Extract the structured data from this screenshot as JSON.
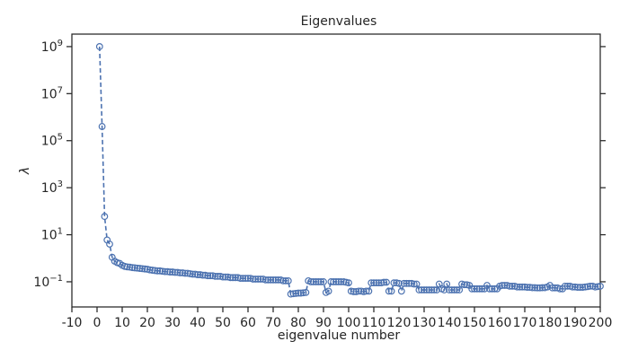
{
  "chart_data": {
    "type": "line",
    "title": "Eigenvalues",
    "x_label": "eigenvalue number",
    "y_label": "λ",
    "log_y": true,
    "x": [
      1,
      2,
      3,
      4,
      5,
      6,
      7,
      8,
      9,
      10,
      11,
      12,
      13,
      14,
      15,
      16,
      17,
      18,
      19,
      20,
      21,
      22,
      23,
      24,
      25,
      26,
      27,
      28,
      29,
      30,
      31,
      32,
      33,
      34,
      35,
      36,
      37,
      38,
      39,
      40,
      41,
      42,
      43,
      44,
      45,
      46,
      47,
      48,
      49,
      50,
      51,
      52,
      53,
      54,
      55,
      56,
      57,
      58,
      59,
      60,
      61,
      62,
      63,
      64,
      65,
      66,
      67,
      68,
      69,
      70,
      71,
      72,
      73,
      74,
      75,
      76,
      77,
      78,
      79,
      80,
      81,
      82,
      83,
      84,
      85,
      86,
      87,
      88,
      89,
      90,
      91,
      92,
      93,
      94,
      95,
      96,
      97,
      98,
      99,
      100,
      101,
      102,
      103,
      104,
      105,
      106,
      107,
      108,
      109,
      110,
      111,
      112,
      113,
      114,
      115,
      116,
      117,
      118,
      119,
      120,
      121,
      122,
      123,
      124,
      125,
      126,
      127,
      128,
      129,
      130,
      131,
      132,
      133,
      134,
      135,
      136,
      137,
      138,
      139,
      140,
      141,
      142,
      143,
      144,
      145,
      146,
      147,
      148,
      149,
      150,
      151,
      152,
      153,
      154,
      155,
      156,
      157,
      158,
      159,
      160,
      161,
      162,
      163,
      164,
      165,
      166,
      167,
      168,
      169,
      170,
      171,
      172,
      173,
      174,
      175,
      176,
      177,
      178,
      179,
      180,
      181,
      182,
      183,
      184,
      185,
      186,
      187,
      188,
      189,
      190,
      191,
      192,
      193,
      194,
      195,
      196,
      197,
      198,
      199,
      200
    ],
    "series": [
      {
        "name": "eigenvalues",
        "color": "#4c72b0",
        "values": [
          1000000000,
          400000,
          60,
          6,
          4,
          1.1,
          0.75,
          0.65,
          0.6,
          0.5,
          0.45,
          0.43,
          0.42,
          0.4,
          0.39,
          0.38,
          0.37,
          0.36,
          0.35,
          0.34,
          0.32,
          0.31,
          0.3,
          0.29,
          0.29,
          0.28,
          0.27,
          0.27,
          0.26,
          0.26,
          0.25,
          0.25,
          0.24,
          0.24,
          0.23,
          0.23,
          0.22,
          0.21,
          0.21,
          0.2,
          0.2,
          0.19,
          0.19,
          0.18,
          0.18,
          0.18,
          0.17,
          0.17,
          0.17,
          0.16,
          0.16,
          0.16,
          0.15,
          0.15,
          0.15,
          0.15,
          0.14,
          0.14,
          0.14,
          0.14,
          0.14,
          0.13,
          0.13,
          0.13,
          0.13,
          0.13,
          0.12,
          0.12,
          0.12,
          0.12,
          0.12,
          0.12,
          0.12,
          0.11,
          0.11,
          0.11,
          0.03,
          0.031,
          0.032,
          0.033,
          0.033,
          0.034,
          0.035,
          0.11,
          0.1,
          0.1,
          0.1,
          0.1,
          0.1,
          0.1,
          0.035,
          0.04,
          0.1,
          0.1,
          0.1,
          0.1,
          0.1,
          0.1,
          0.095,
          0.09,
          0.04,
          0.038,
          0.038,
          0.04,
          0.04,
          0.038,
          0.04,
          0.04,
          0.09,
          0.09,
          0.09,
          0.09,
          0.09,
          0.095,
          0.095,
          0.04,
          0.04,
          0.09,
          0.09,
          0.085,
          0.04,
          0.085,
          0.085,
          0.085,
          0.085,
          0.08,
          0.08,
          0.045,
          0.045,
          0.045,
          0.045,
          0.045,
          0.045,
          0.045,
          0.045,
          0.08,
          0.05,
          0.045,
          0.08,
          0.045,
          0.045,
          0.045,
          0.045,
          0.045,
          0.08,
          0.075,
          0.075,
          0.07,
          0.05,
          0.05,
          0.05,
          0.05,
          0.05,
          0.05,
          0.07,
          0.05,
          0.05,
          0.05,
          0.05,
          0.065,
          0.07,
          0.07,
          0.07,
          0.065,
          0.065,
          0.065,
          0.06,
          0.06,
          0.06,
          0.06,
          0.058,
          0.058,
          0.056,
          0.056,
          0.055,
          0.055,
          0.056,
          0.056,
          0.06,
          0.07,
          0.055,
          0.055,
          0.055,
          0.05,
          0.05,
          0.065,
          0.065,
          0.065,
          0.06,
          0.06,
          0.058,
          0.058,
          0.058,
          0.06,
          0.062,
          0.065,
          0.065,
          0.06,
          0.062,
          0.065
        ]
      }
    ],
    "xlim": [
      -10,
      200
    ],
    "xticks": [
      -10,
      0,
      10,
      20,
      30,
      40,
      50,
      60,
      70,
      80,
      90,
      100,
      110,
      120,
      130,
      140,
      150,
      160,
      170,
      180,
      190,
      200
    ],
    "ylim": [
      0.0085,
      3400000000
    ],
    "yticks": [
      {
        "value": 0.1,
        "label": "10^−1"
      },
      {
        "value": 10,
        "label": "10^1"
      },
      {
        "value": 1000,
        "label": "10^3"
      },
      {
        "value": 100000,
        "label": "10^5"
      },
      {
        "value": 10000000,
        "label": "10^7"
      },
      {
        "value": 1000000000,
        "label": "10^9"
      }
    ]
  }
}
